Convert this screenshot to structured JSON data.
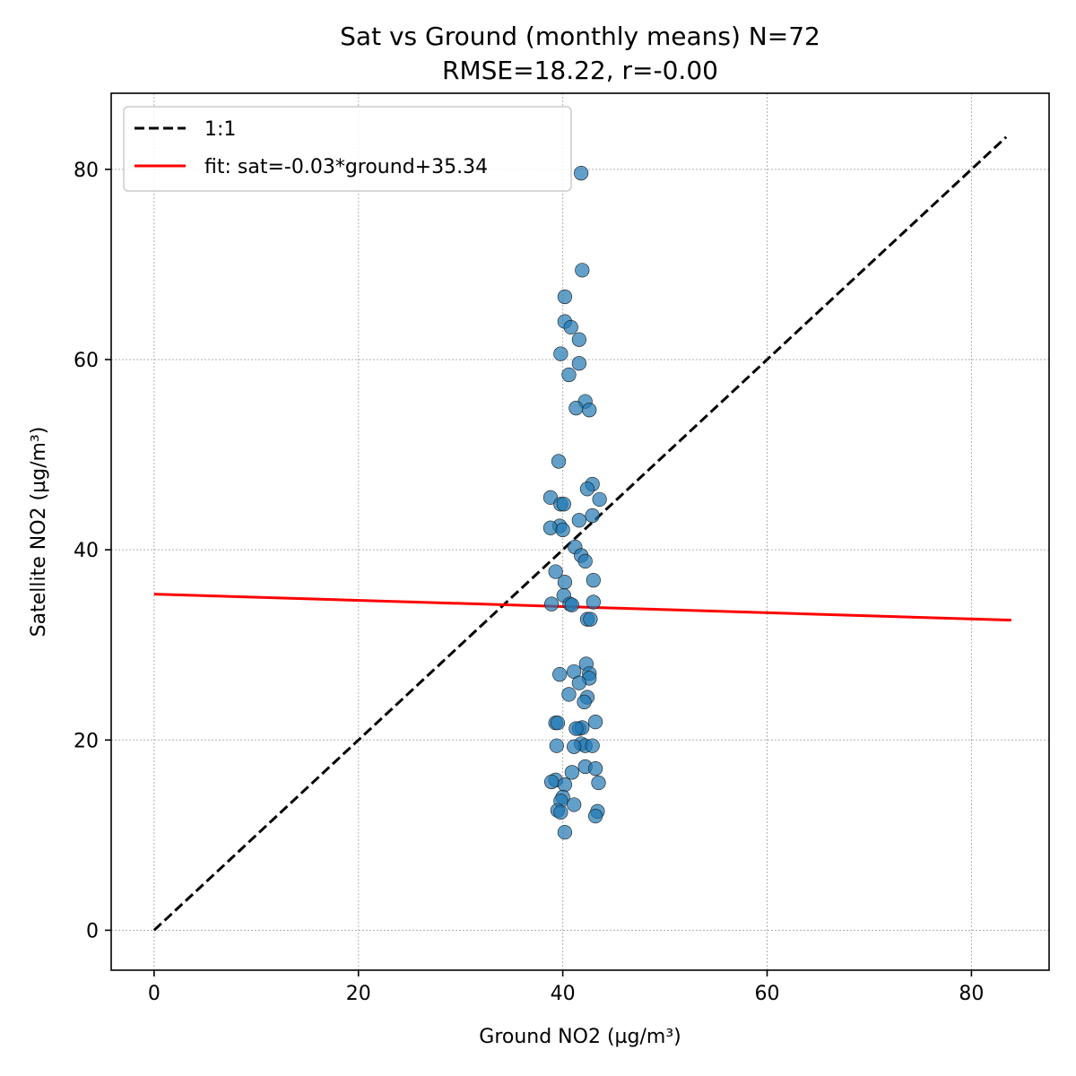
{
  "chart_data": {
    "type": "scatter",
    "title_line1": "Sat vs Ground (monthly means) N=72",
    "title_line2": "RMSE=18.22, r=-0.00",
    "xlabel": "Ground NO2 (µg/m³)",
    "ylabel": "Satellite NO2 (µg/m³)",
    "xlim": [
      -4.2,
      87.6
    ],
    "ylim": [
      -4.2,
      88.0
    ],
    "xticks": [
      0,
      20,
      40,
      60,
      80
    ],
    "yticks": [
      0,
      20,
      40,
      60,
      80
    ],
    "grid": true,
    "legend_position": "top-left",
    "series": [
      {
        "name": "1:1",
        "kind": "line",
        "style": "dashed",
        "color": "#000000",
        "x": [
          0,
          83.4
        ],
        "y": [
          0,
          83.4
        ]
      },
      {
        "name": "fit: sat=-0.03*ground+35.34",
        "kind": "line",
        "style": "solid",
        "color": "#ff0000",
        "x": [
          0,
          83.9
        ],
        "y": [
          35.34,
          32.6
        ]
      },
      {
        "name": "",
        "kind": "scatter",
        "color": "#1f77b4",
        "points": [
          [
            41.8,
            79.6
          ],
          [
            41.9,
            69.4
          ],
          [
            40.2,
            66.6
          ],
          [
            40.2,
            64.0
          ],
          [
            40.8,
            63.4
          ],
          [
            41.6,
            62.1
          ],
          [
            39.8,
            60.6
          ],
          [
            41.6,
            59.6
          ],
          [
            40.6,
            58.4
          ],
          [
            42.2,
            55.6
          ],
          [
            41.3,
            54.9
          ],
          [
            42.6,
            54.7
          ],
          [
            39.6,
            49.3
          ],
          [
            42.9,
            46.9
          ],
          [
            42.4,
            46.4
          ],
          [
            38.8,
            45.5
          ],
          [
            43.6,
            45.3
          ],
          [
            39.8,
            44.8
          ],
          [
            40.1,
            44.8
          ],
          [
            42.9,
            43.6
          ],
          [
            41.6,
            43.1
          ],
          [
            39.7,
            42.5
          ],
          [
            38.8,
            42.3
          ],
          [
            40.0,
            42.1
          ],
          [
            41.2,
            40.3
          ],
          [
            41.8,
            39.4
          ],
          [
            42.2,
            38.8
          ],
          [
            39.3,
            37.7
          ],
          [
            43.0,
            36.8
          ],
          [
            40.2,
            36.6
          ],
          [
            40.1,
            35.2
          ],
          [
            43.0,
            34.5
          ],
          [
            38.9,
            34.3
          ],
          [
            40.7,
            34.3
          ],
          [
            40.9,
            34.2
          ],
          [
            42.4,
            32.7
          ],
          [
            42.7,
            32.7
          ],
          [
            42.3,
            28.0
          ],
          [
            42.6,
            27.0
          ],
          [
            39.7,
            26.9
          ],
          [
            41.1,
            27.2
          ],
          [
            42.6,
            26.5
          ],
          [
            41.6,
            26.0
          ],
          [
            40.6,
            24.8
          ],
          [
            42.4,
            24.5
          ],
          [
            42.1,
            24.0
          ],
          [
            39.3,
            21.8
          ],
          [
            39.5,
            21.8
          ],
          [
            43.2,
            21.9
          ],
          [
            41.6,
            21.2
          ],
          [
            41.9,
            21.3
          ],
          [
            41.8,
            19.6
          ],
          [
            42.2,
            19.4
          ],
          [
            39.4,
            19.4
          ],
          [
            41.1,
            19.3
          ],
          [
            42.9,
            19.4
          ],
          [
            42.2,
            17.2
          ],
          [
            43.2,
            17.0
          ],
          [
            40.9,
            16.6
          ],
          [
            39.3,
            15.8
          ],
          [
            38.9,
            15.6
          ],
          [
            43.5,
            15.5
          ],
          [
            40.2,
            15.3
          ],
          [
            40.0,
            14.0
          ],
          [
            39.8,
            13.6
          ],
          [
            41.1,
            13.2
          ],
          [
            39.5,
            12.6
          ],
          [
            39.8,
            12.4
          ],
          [
            43.4,
            12.5
          ],
          [
            43.2,
            12.0
          ],
          [
            40.2,
            10.3
          ],
          [
            41.3,
            21.2
          ]
        ]
      }
    ]
  }
}
